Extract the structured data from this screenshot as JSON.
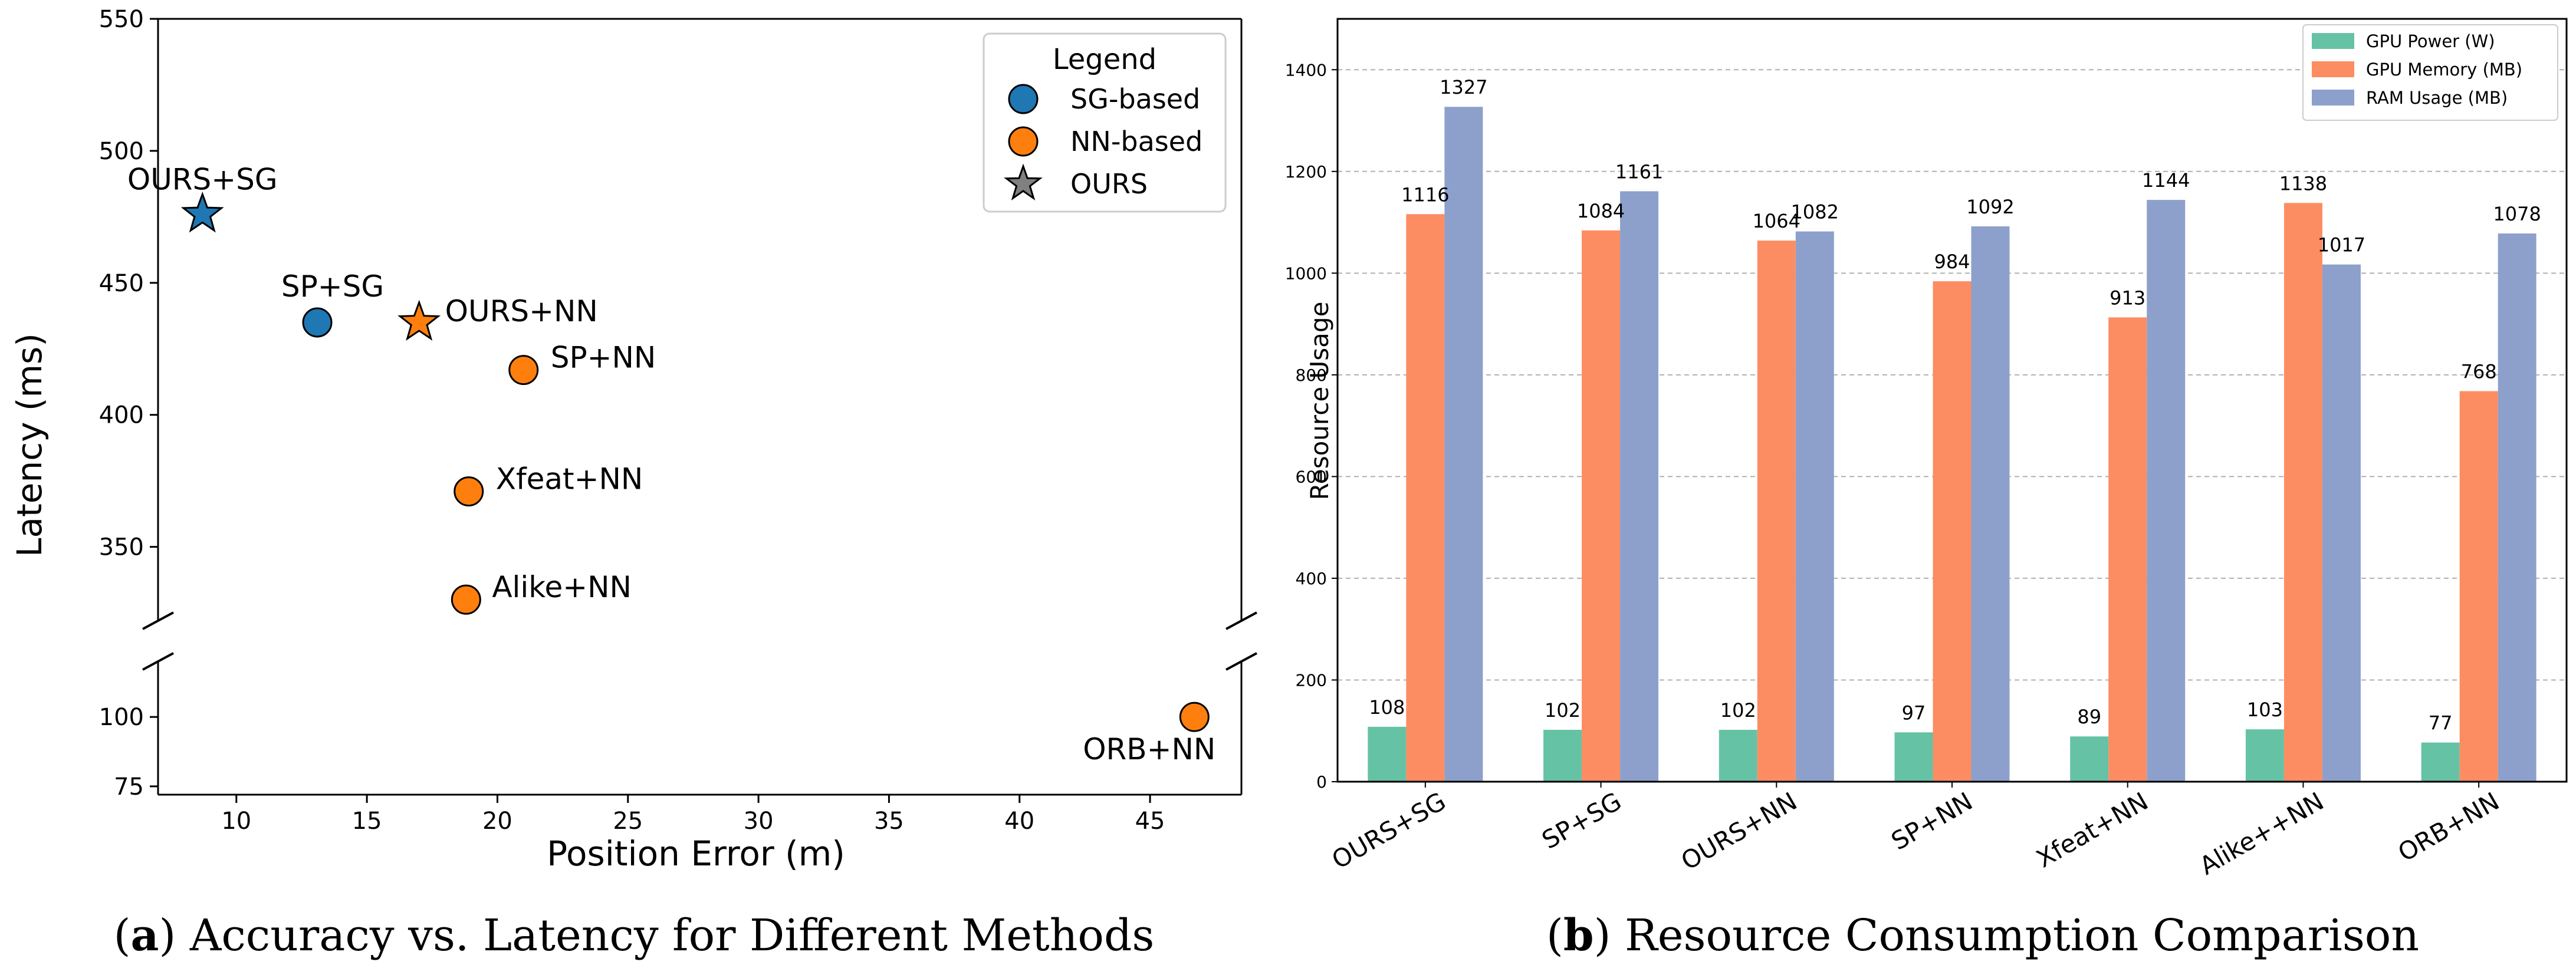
{
  "captions": {
    "a_letter": "a",
    "a_text": " Accuracy vs. Latency for Different Methods",
    "b_letter": "b",
    "b_text": " Resource Consumption Comparison"
  },
  "colors": {
    "sg_blue": "#1f77b4",
    "nn_orange": "#ff7f0e",
    "ours_gray": "#808080",
    "gpu_power": "#66c2a5",
    "gpu_memory": "#fc8d62",
    "ram_usage": "#8da0cb"
  },
  "chart_data": [
    {
      "type": "scatter",
      "title": "",
      "xlabel": "Position Error (m)",
      "ylabel": "Latency (ms)",
      "xlim": [
        7,
        48.5
      ],
      "ylim_upper": [
        322,
        550
      ],
      "ylim_lower": [
        72,
        120
      ],
      "broken_y_axis": true,
      "x_ticks": [
        "10",
        "15",
        "20",
        "25",
        "30",
        "35",
        "40",
        "45"
      ],
      "y_ticks_upper": [
        "350",
        "400",
        "450",
        "500",
        "550"
      ],
      "y_ticks_lower": [
        "75",
        "100"
      ],
      "grid": false,
      "legend": {
        "title": "Legend",
        "position": "top-right",
        "entries": [
          {
            "label": "SG-based",
            "marker": "circle",
            "color": "#1f77b4"
          },
          {
            "label": "NN-based",
            "marker": "circle",
            "color": "#ff7f0e"
          },
          {
            "label": "OURS",
            "marker": "star",
            "color": "#808080"
          }
        ]
      },
      "points": [
        {
          "label": "OURS+SG",
          "x": 8.7,
          "y": 476,
          "group": "SG-based",
          "marker": "star"
        },
        {
          "label": "SP+SG",
          "x": 13.1,
          "y": 435,
          "group": "SG-based",
          "marker": "circle"
        },
        {
          "label": "OURS+NN",
          "x": 17.0,
          "y": 435,
          "group": "NN-based",
          "marker": "star"
        },
        {
          "label": "SP+NN",
          "x": 21.0,
          "y": 417,
          "group": "NN-based",
          "marker": "circle"
        },
        {
          "label": "Xfeat+NN",
          "x": 18.9,
          "y": 371,
          "group": "NN-based",
          "marker": "circle"
        },
        {
          "label": "Alike+NN",
          "x": 18.8,
          "y": 330,
          "group": "NN-based",
          "marker": "circle"
        },
        {
          "label": "ORB+NN",
          "x": 46.7,
          "y": 100,
          "group": "NN-based",
          "marker": "circle"
        }
      ]
    },
    {
      "type": "bar",
      "title": "",
      "xlabel": "",
      "ylabel": "Resource Usage",
      "ylim": [
        0,
        1500
      ],
      "y_ticks": [
        "0",
        "200",
        "400",
        "600",
        "800",
        "1000",
        "1200",
        "1400"
      ],
      "grid": true,
      "legend_position": "top-right",
      "categories": [
        "OURS+SG",
        "SP+SG",
        "OURS+NN",
        "SP+NN",
        "Xfeat+NN",
        "Alike++NN",
        "ORB+NN"
      ],
      "series": [
        {
          "name": "GPU Power (W)",
          "color": "#66c2a5",
          "values": [
            108,
            102,
            102,
            97,
            89,
            103,
            77
          ]
        },
        {
          "name": "GPU Memory (MB)",
          "color": "#fc8d62",
          "values": [
            1116,
            1084,
            1064,
            984,
            913,
            1138,
            768
          ]
        },
        {
          "name": "RAM Usage (MB)",
          "color": "#8da0cb",
          "values": [
            1327,
            1161,
            1082,
            1092,
            1144,
            1017,
            1078
          ]
        }
      ]
    }
  ]
}
